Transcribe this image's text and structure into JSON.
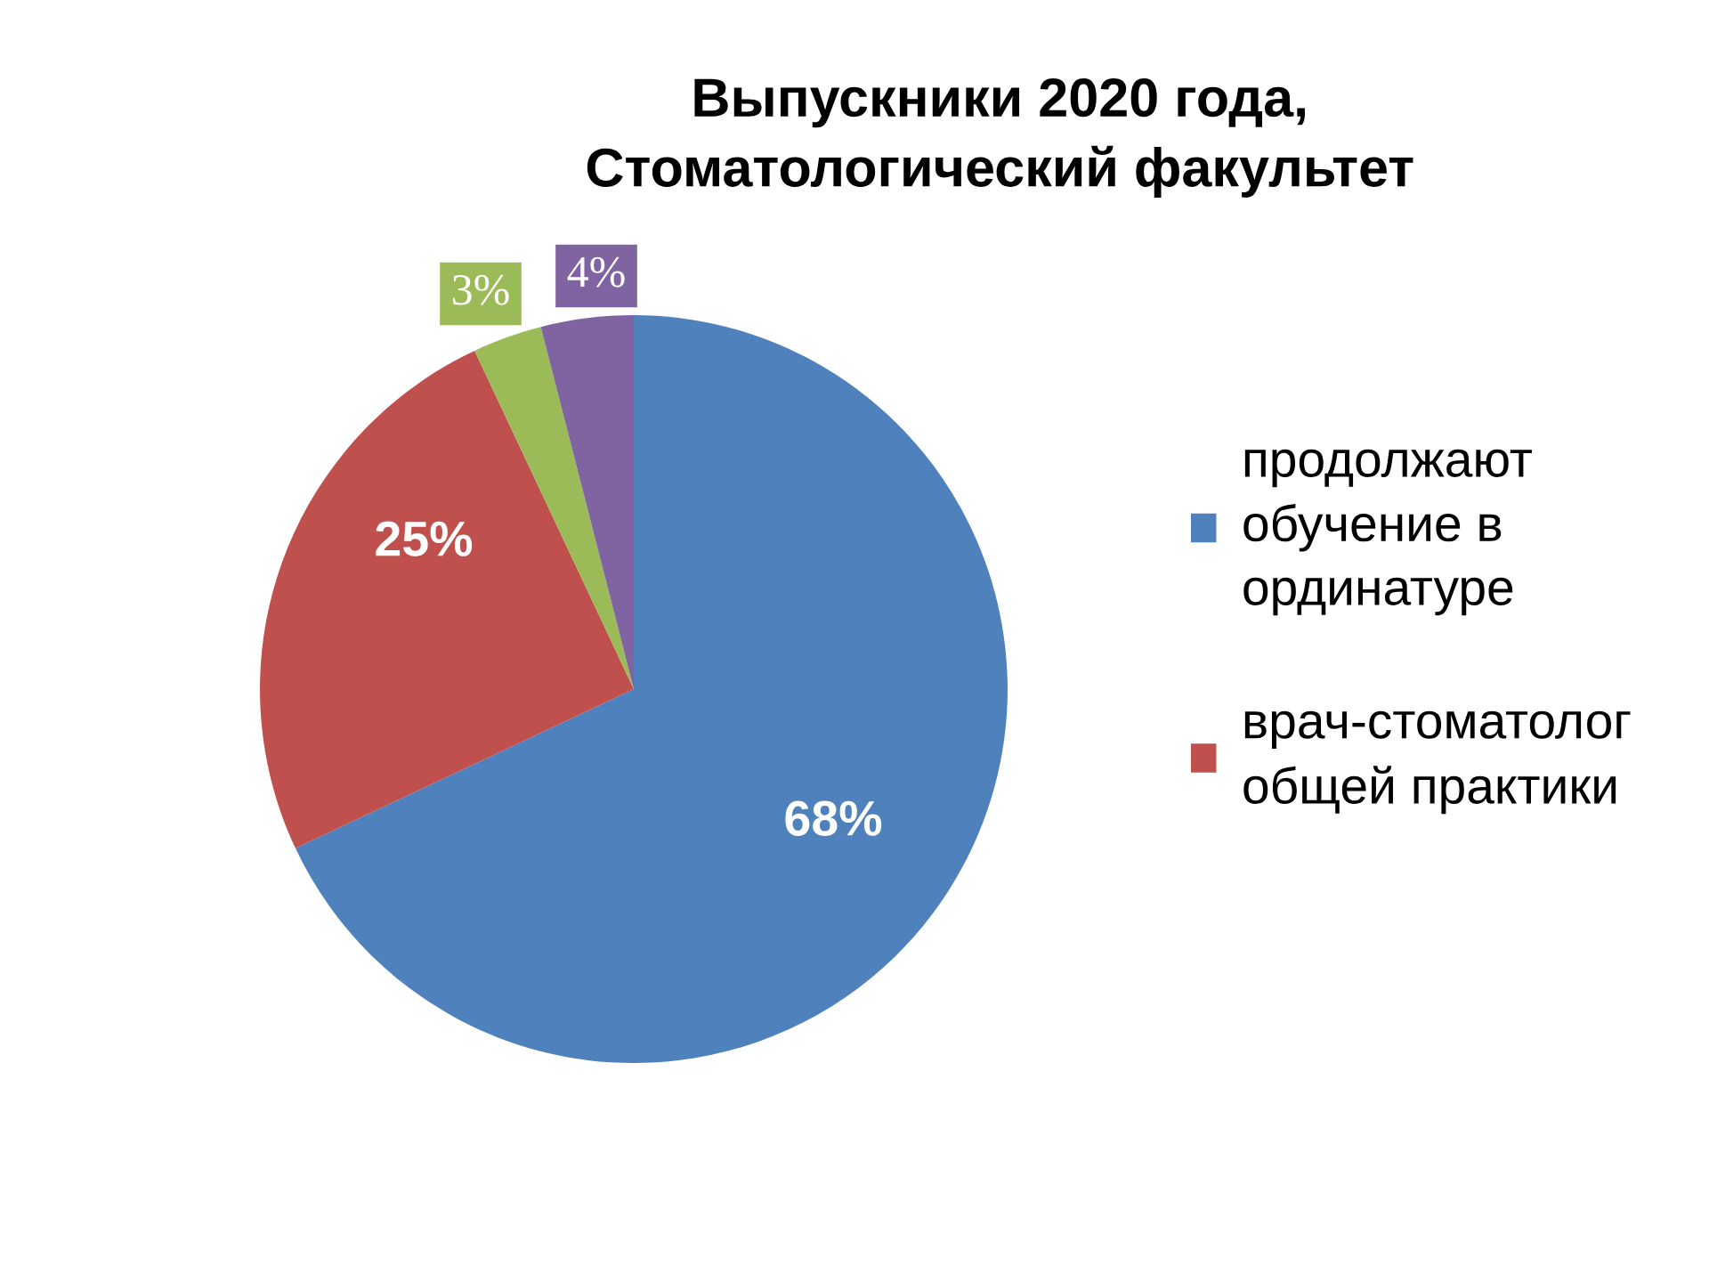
{
  "chart_data": {
    "type": "pie",
    "title": "Выпускники 2020 года,\nСтоматологический факультет",
    "categories": [
      "продолжают\nобучение в\nординатуре",
      "врач-стоматолог\nобщей практики",
      null,
      null
    ],
    "values": [
      68,
      25,
      3,
      4
    ],
    "colors": [
      "#4f81bd",
      "#c0504d",
      "#9bbb59",
      "#8064a2"
    ],
    "value_labels": [
      "68%",
      "25%",
      "3%",
      "4%"
    ],
    "legend": "right"
  }
}
